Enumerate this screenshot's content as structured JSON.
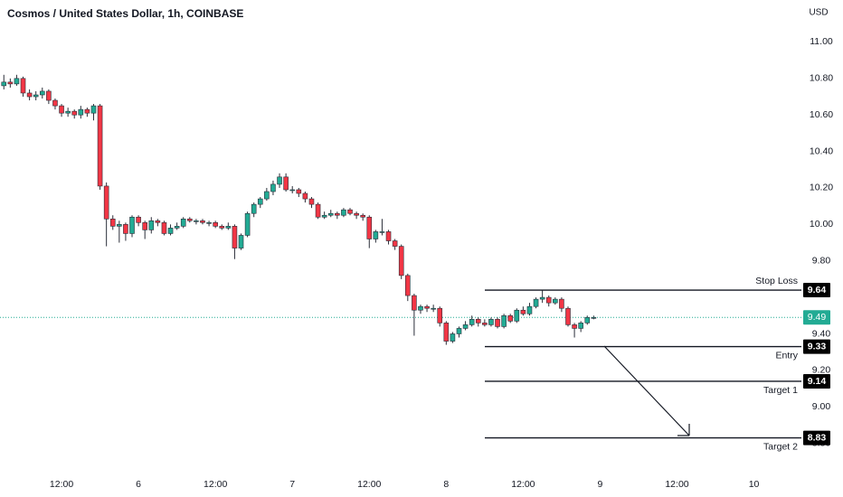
{
  "chart_data": {
    "type": "candlestick",
    "title": "Cosmos / United States Dollar, 1h, COINBASE",
    "y_unit": "USD",
    "up_color": "#22ab94",
    "down_color": "#f23645",
    "x": [
      -21,
      -20,
      -19,
      -18,
      -17,
      -16,
      -15,
      -14,
      -13,
      -12,
      -11,
      -10,
      -9,
      -8,
      -7,
      -6,
      -5,
      -4,
      -3,
      -2,
      -1,
      0,
      1,
      2,
      3,
      4,
      5,
      6,
      7,
      8,
      9,
      10,
      11,
      12,
      13,
      14,
      15,
      16,
      17,
      18,
      19,
      20,
      21,
      22,
      23,
      24,
      25,
      26,
      27,
      28,
      29,
      30,
      31,
      32,
      33,
      34,
      35,
      36,
      37,
      38,
      39,
      40,
      41,
      42,
      43,
      44,
      45,
      46,
      47,
      48,
      49,
      50,
      51,
      52,
      53,
      54,
      55,
      56,
      57,
      58,
      59,
      60,
      61,
      62,
      63,
      64,
      65,
      66,
      67,
      68,
      69,
      70,
      71
    ],
    "open": [
      10.76,
      10.78,
      10.77,
      10.8,
      10.72,
      10.7,
      10.71,
      10.73,
      10.68,
      10.65,
      10.61,
      10.62,
      10.6,
      10.63,
      10.61,
      10.65,
      10.21,
      10.03,
      9.99,
      10.0,
      9.95,
      10.04,
      10.01,
      9.97,
      10.02,
      10.01,
      9.95,
      9.98,
      9.99,
      10.03,
      10.02,
      10.02,
      10.01,
      10.01,
      9.99,
      9.98,
      9.99,
      9.87,
      9.94,
      10.06,
      10.11,
      10.14,
      10.18,
      10.22,
      10.26,
      10.19,
      10.19,
      10.17,
      10.14,
      10.11,
      10.04,
      10.05,
      10.06,
      10.05,
      10.08,
      10.06,
      10.05,
      10.04,
      9.92,
      9.96,
      9.96,
      9.91,
      9.88,
      9.72,
      9.61,
      9.53,
      9.55,
      9.54,
      9.54,
      9.46,
      9.36,
      9.4,
      9.43,
      9.45,
      9.48,
      9.46,
      9.45,
      9.48,
      9.44,
      9.5,
      9.47,
      9.53,
      9.51,
      9.55,
      9.59,
      9.6,
      9.57,
      9.59,
      9.54,
      9.45,
      9.43,
      9.46,
      9.49
    ],
    "high": [
      10.82,
      10.8,
      10.82,
      10.81,
      10.74,
      10.73,
      10.75,
      10.74,
      10.69,
      10.66,
      10.64,
      10.63,
      10.65,
      10.64,
      10.66,
      10.66,
      10.23,
      10.05,
      10.02,
      10.01,
      10.05,
      10.05,
      10.02,
      10.04,
      10.03,
      10.02,
      10.0,
      10.01,
      10.04,
      10.04,
      10.03,
      10.03,
      10.02,
      10.02,
      10.0,
      10.01,
      10.0,
      9.95,
      10.07,
      10.12,
      10.15,
      10.2,
      10.24,
      10.28,
      10.28,
      10.21,
      10.2,
      10.18,
      10.15,
      10.12,
      10.07,
      10.08,
      10.07,
      10.09,
      10.09,
      10.07,
      10.06,
      10.05,
      9.97,
      10.03,
      9.97,
      9.92,
      9.89,
      9.73,
      9.62,
      9.56,
      9.56,
      9.56,
      9.55,
      9.47,
      9.41,
      9.44,
      9.47,
      9.5,
      9.49,
      9.48,
      9.49,
      9.49,
      9.51,
      9.51,
      9.54,
      9.55,
      9.57,
      9.6,
      9.64,
      9.61,
      9.6,
      9.6,
      9.55,
      9.46,
      9.47,
      9.5,
      9.5
    ],
    "low": [
      10.74,
      10.75,
      10.76,
      10.7,
      10.68,
      10.68,
      10.69,
      10.66,
      10.63,
      10.59,
      10.59,
      10.58,
      10.58,
      10.59,
      10.57,
      10.19,
      9.88,
      9.97,
      9.9,
      9.91,
      9.93,
      9.99,
      9.92,
      9.95,
      9.99,
      9.94,
      9.94,
      9.97,
      9.98,
      10.01,
      10.0,
      10.0,
      9.99,
      9.98,
      9.97,
      9.97,
      9.81,
      9.86,
      9.93,
      10.04,
      10.09,
      10.13,
      10.16,
      10.2,
      10.18,
      10.17,
      10.15,
      10.12,
      10.09,
      10.03,
      10.03,
      10.04,
      10.03,
      10.04,
      10.05,
      10.03,
      10.02,
      9.87,
      9.9,
      9.94,
      9.89,
      9.86,
      9.7,
      9.58,
      9.39,
      9.51,
      9.52,
      9.52,
      9.44,
      9.34,
      9.35,
      9.38,
      9.42,
      9.44,
      9.44,
      9.44,
      9.44,
      9.43,
      9.43,
      9.46,
      9.46,
      9.5,
      9.5,
      9.54,
      9.57,
      9.55,
      9.56,
      9.52,
      9.44,
      9.38,
      9.41,
      9.45,
      9.48
    ],
    "close": [
      10.78,
      10.77,
      10.8,
      10.72,
      10.7,
      10.71,
      10.73,
      10.68,
      10.65,
      10.61,
      10.62,
      10.6,
      10.63,
      10.61,
      10.65,
      10.21,
      10.03,
      9.99,
      10.0,
      9.95,
      10.04,
      10.01,
      9.97,
      10.02,
      10.01,
      9.95,
      9.98,
      9.99,
      10.03,
      10.02,
      10.02,
      10.01,
      10.01,
      9.99,
      9.98,
      9.99,
      9.87,
      9.94,
      10.06,
      10.11,
      10.14,
      10.18,
      10.22,
      10.26,
      10.19,
      10.19,
      10.17,
      10.14,
      10.11,
      10.04,
      10.05,
      10.06,
      10.05,
      10.08,
      10.06,
      10.05,
      10.04,
      9.92,
      9.96,
      9.96,
      9.91,
      9.88,
      9.72,
      9.61,
      9.53,
      9.55,
      9.54,
      9.54,
      9.46,
      9.36,
      9.4,
      9.43,
      9.45,
      9.48,
      9.46,
      9.45,
      9.48,
      9.44,
      9.5,
      9.47,
      9.53,
      9.51,
      9.55,
      9.59,
      9.6,
      9.57,
      9.59,
      9.54,
      9.45,
      9.43,
      9.46,
      9.49,
      9.49
    ],
    "xlim": [
      -21.6,
      103.4
    ],
    "xticks": [
      {
        "value": -12,
        "label": "12:00"
      },
      {
        "value": 0,
        "label": "6"
      },
      {
        "value": 12,
        "label": "12:00"
      },
      {
        "value": 24,
        "label": "7"
      },
      {
        "value": 36,
        "label": "12:00"
      },
      {
        "value": 48,
        "label": "8"
      },
      {
        "value": 60,
        "label": "12:00"
      },
      {
        "value": 72,
        "label": "9"
      },
      {
        "value": 84,
        "label": "12:00"
      },
      {
        "value": 96,
        "label": "10"
      }
    ],
    "ylim": [
      8.6,
      11.23
    ],
    "yticks": [
      {
        "value": 11,
        "label": "11.00"
      },
      {
        "value": 10.8,
        "label": "10.80"
      },
      {
        "value": 10.6,
        "label": "10.60"
      },
      {
        "value": 10.4,
        "label": "10.40"
      },
      {
        "value": 10.2,
        "label": "10.20"
      },
      {
        "value": 10,
        "label": "10.00"
      },
      {
        "value": 9.8,
        "label": "9.80"
      },
      {
        "value": 9.4,
        "label": "9.40"
      },
      {
        "value": 9.2,
        "label": "9.20"
      },
      {
        "value": 9,
        "label": "9.00"
      },
      {
        "value": 8.8,
        "label": "8.80"
      }
    ],
    "last_price": 9.49,
    "last_price_color": "#22ab94",
    "levels": [
      {
        "name": "Stop Loss",
        "value": 9.64,
        "label_side": "above"
      },
      {
        "name": "Entry",
        "value": 9.33,
        "label_side": "below"
      },
      {
        "name": "Target 1",
        "value": 9.14,
        "label_side": "below"
      },
      {
        "name": "Target 2",
        "value": 8.83,
        "label_side": "below"
      }
    ]
  }
}
